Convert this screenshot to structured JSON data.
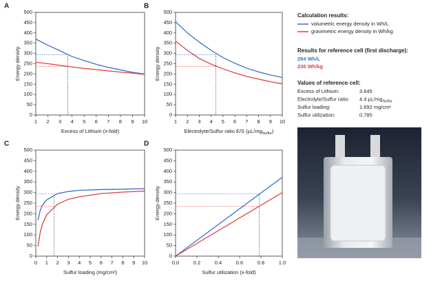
{
  "chart_data": [
    {
      "type": "line",
      "label": "A",
      "xlabel": "Excess of Lithium (x-fold)",
      "ylabel": "Energy density",
      "x": [
        1,
        2,
        3,
        4,
        5,
        6,
        7,
        8,
        9,
        10
      ],
      "series": [
        {
          "name": "volumetric energy density in Wh/L",
          "color": "#3b6fc6",
          "values": [
            370,
            340,
            313,
            285,
            265,
            247,
            232,
            220,
            208,
            200
          ]
        },
        {
          "name": "gravimetric energy density in Wh/kg",
          "color": "#e0403f",
          "values": [
            257,
            250,
            242,
            234,
            227,
            221,
            215,
            209,
            204,
            198
          ]
        }
      ],
      "reference": {
        "x": 3.645,
        "values": [
          294,
          236
        ]
      },
      "xlim": [
        1,
        10
      ],
      "xticks": [
        1,
        2,
        3,
        4,
        5,
        6,
        7,
        8,
        9,
        10
      ],
      "ylim": [
        0,
        500
      ],
      "yticks": [
        0,
        50,
        100,
        150,
        200,
        250,
        300,
        350,
        400,
        450,
        500
      ]
    },
    {
      "type": "line",
      "label": "B",
      "xlabel": [
        {
          "text": "Electrolyte/Sulfur ratio E/S (µL/mg"
        },
        {
          "text": "Sulfur",
          "sub": true
        },
        {
          "text": ")"
        }
      ],
      "ylabel": "Energy density",
      "x": [
        1,
        2,
        3,
        4,
        5,
        6,
        7,
        8,
        9,
        10
      ],
      "series": [
        {
          "color": "#3b6fc6",
          "values": [
            455,
            400,
            355,
            315,
            280,
            252,
            228,
            210,
            195,
            183
          ]
        },
        {
          "color": "#e0403f",
          "values": [
            360,
            315,
            275,
            248,
            225,
            205,
            188,
            175,
            162,
            152
          ]
        }
      ],
      "reference": {
        "x": 4.4,
        "values": [
          294,
          236
        ]
      },
      "xlim": [
        1,
        10
      ],
      "xticks": [
        1,
        2,
        3,
        4,
        5,
        6,
        7,
        8,
        9,
        10
      ],
      "ylim": [
        0,
        500
      ],
      "yticks": [
        0,
        50,
        100,
        150,
        200,
        250,
        300,
        350,
        400,
        450,
        500
      ]
    },
    {
      "type": "line",
      "label": "C",
      "xlabel": "Sulfur loading (mg/cm²)",
      "ylabel": "Energy density",
      "x": [
        0.2,
        0.4,
        0.6,
        1,
        2,
        3,
        4,
        6,
        8,
        10
      ],
      "series": [
        {
          "color": "#3b6fc6",
          "values": [
            170,
            215,
            240,
            265,
            295,
            305,
            310,
            314,
            316,
            318
          ]
        },
        {
          "color": "#e0403f",
          "values": [
            45,
            110,
            150,
            195,
            245,
            268,
            280,
            295,
            302,
            307
          ]
        }
      ],
      "reference": {
        "x": 1.692,
        "values": [
          294,
          236
        ]
      },
      "xlim": [
        0,
        10
      ],
      "xticks": [
        0,
        1,
        2,
        3,
        4,
        5,
        6,
        7,
        8,
        9,
        10
      ],
      "ylim": [
        0,
        500
      ],
      "yticks": [
        0,
        50,
        100,
        150,
        200,
        250,
        300,
        350,
        400,
        450,
        500
      ]
    },
    {
      "type": "line",
      "label": "D",
      "xlabel": "Sulfur utilization (x-fold)",
      "ylabel": "Energy density",
      "x": [
        0,
        1
      ],
      "series": [
        {
          "color": "#3b6fc6",
          "values": [
            0,
            372
          ]
        },
        {
          "color": "#e0403f",
          "values": [
            0,
            300
          ]
        }
      ],
      "reference": {
        "x": 0.785,
        "values": [
          294,
          236
        ]
      },
      "xlim": [
        0,
        1
      ],
      "xticks": [
        {
          "value": 0,
          "label": "0.0"
        },
        0.2,
        0.4,
        0.6,
        0.8,
        {
          "value": 1,
          "label": "1.0"
        }
      ],
      "ylim": [
        0,
        500
      ],
      "yticks": [
        0,
        50,
        100,
        150,
        200,
        250,
        300,
        350,
        400,
        450,
        500
      ]
    }
  ],
  "panel": {
    "calc_title": "Calculation results:",
    "ref_title": "Results for reference cell (first discharge):",
    "ref_volumetric": "294 Wh/L",
    "ref_gravimetric": "236 Wh/kg",
    "values_title": "Values of reference cell:",
    "rows": [
      [
        [
          {
            "text": "Excess of Lithium:"
          }
        ],
        [
          {
            "text": "3.645"
          }
        ]
      ],
      [
        [
          {
            "text": "Electrolyte/Sulfur ratio:"
          }
        ],
        [
          {
            "text": "4.4 µL/mg"
          },
          {
            "text": "Sulfur",
            "sub": true
          }
        ]
      ],
      [
        [
          {
            "text": "Sulfur loading:"
          }
        ],
        [
          {
            "text": "1.692 mg/cm²"
          }
        ]
      ],
      [
        [
          {
            "text": "Sulfur utilization:"
          }
        ],
        [
          {
            "text": "0.785"
          }
        ]
      ]
    ]
  }
}
